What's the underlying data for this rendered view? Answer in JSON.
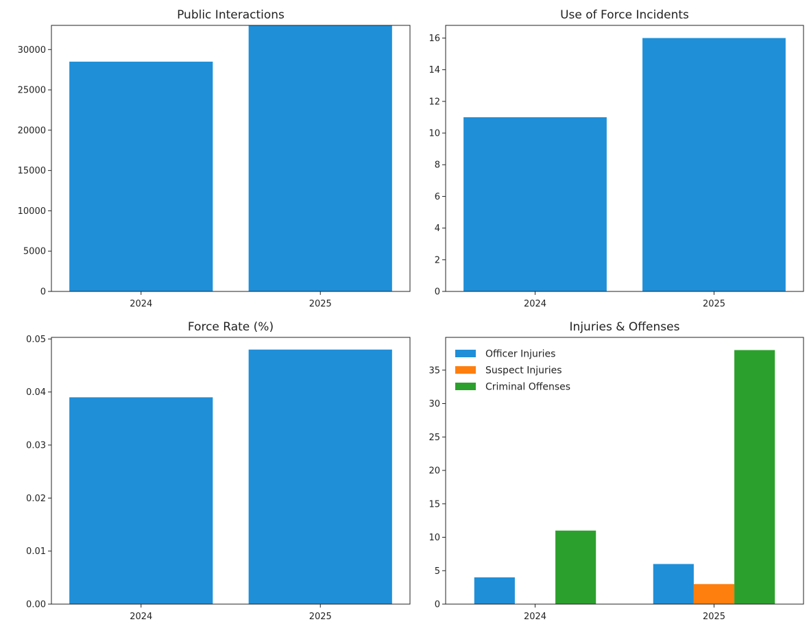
{
  "colors": {
    "primary": "#1f8fd8",
    "officer": "#1f8fd8",
    "suspect": "#ff7f0e",
    "criminal": "#2ca02c"
  },
  "chart_data": [
    {
      "type": "bar",
      "title": "Public Interactions",
      "categories": [
        "2024",
        "2025"
      ],
      "values": [
        28500,
        33000
      ],
      "ylim": [
        0,
        33000
      ],
      "yticks": [
        0,
        5000,
        10000,
        15000,
        20000,
        25000,
        30000
      ],
      "ytick_labels": [
        "0",
        "5000",
        "10000",
        "15000",
        "20000",
        "25000",
        "30000"
      ],
      "xlabel": "",
      "ylabel": "",
      "grid": false
    },
    {
      "type": "bar",
      "title": "Use of Force Incidents",
      "categories": [
        "2024",
        "2025"
      ],
      "values": [
        11,
        16
      ],
      "ylim": [
        0,
        16.8
      ],
      "yticks": [
        0,
        2,
        4,
        6,
        8,
        10,
        12,
        14,
        16
      ],
      "ytick_labels": [
        "0",
        "2",
        "4",
        "6",
        "8",
        "10",
        "12",
        "14",
        "16"
      ],
      "xlabel": "",
      "ylabel": "",
      "grid": false
    },
    {
      "type": "bar",
      "title": "Force Rate (%)",
      "categories": [
        "2024",
        "2025"
      ],
      "values": [
        0.039,
        0.048
      ],
      "ylim": [
        0,
        0.0503
      ],
      "yticks": [
        0,
        0.01,
        0.02,
        0.03,
        0.04,
        0.05
      ],
      "ytick_labels": [
        "0.00",
        "0.01",
        "0.02",
        "0.03",
        "0.04",
        "0.05"
      ],
      "xlabel": "",
      "ylabel": "",
      "grid": false
    },
    {
      "type": "bar",
      "title": "Injuries & Offenses",
      "categories": [
        "2024",
        "2025"
      ],
      "series": [
        {
          "name": "Officer Injuries",
          "values": [
            4,
            6
          ],
          "color_key": "officer"
        },
        {
          "name": "Suspect Injuries",
          "values": [
            0,
            3
          ],
          "color_key": "suspect"
        },
        {
          "name": "Criminal Offenses",
          "values": [
            11,
            38
          ],
          "color_key": "criminal"
        }
      ],
      "ylim": [
        0,
        39.9
      ],
      "yticks": [
        0,
        5,
        10,
        15,
        20,
        25,
        30,
        35
      ],
      "ytick_labels": [
        "0",
        "5",
        "10",
        "15",
        "20",
        "25",
        "30",
        "35"
      ],
      "legend": "top-left",
      "xlabel": "",
      "ylabel": "",
      "grid": false
    }
  ]
}
